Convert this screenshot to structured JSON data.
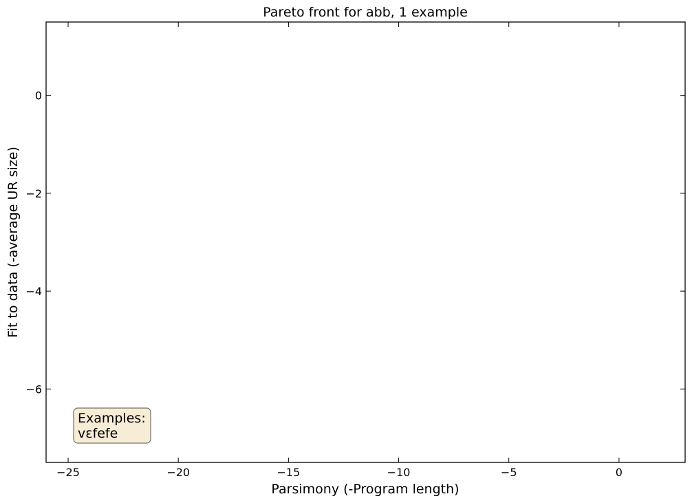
{
  "chart_data": {
    "type": "scatter",
    "title": "Pareto front for abb, 1 example",
    "xlabel": "Parsimony (-Program length)",
    "ylabel": "Fit to data (-average UR size)",
    "xlim": [
      -26,
      3
    ],
    "ylim": [
      -7.5,
      1.5
    ],
    "xticks": [
      -25,
      -20,
      -15,
      -10,
      -5,
      0
    ],
    "xtick_labels": [
      "−25",
      "−20",
      "−15",
      "−10",
      "−5",
      "0"
    ],
    "yticks": [
      0,
      -2,
      -4,
      -6
    ],
    "ytick_labels": [
      "0",
      "−2",
      "−4",
      "−6"
    ],
    "series": [],
    "grid": false,
    "annotation": {
      "lines": [
        "Examples:",
        "vɛfefe"
      ],
      "placement": "bottom-left",
      "background": "#f5deb3",
      "border": "#000000"
    }
  }
}
